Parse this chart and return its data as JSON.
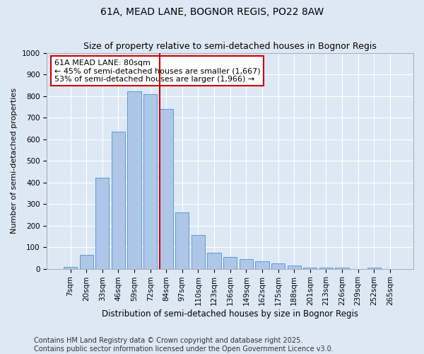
{
  "title": "61A, MEAD LANE, BOGNOR REGIS, PO22 8AW",
  "subtitle": "Size of property relative to semi-detached houses in Bognor Regis",
  "xlabel": "Distribution of semi-detached houses by size in Bognor Regis",
  "ylabel": "Number of semi-detached properties",
  "categories": [
    "7sqm",
    "20sqm",
    "33sqm",
    "46sqm",
    "59sqm",
    "72sqm",
    "84sqm",
    "97sqm",
    "110sqm",
    "123sqm",
    "136sqm",
    "149sqm",
    "162sqm",
    "175sqm",
    "188sqm",
    "201sqm",
    "213sqm",
    "226sqm",
    "239sqm",
    "252sqm",
    "265sqm"
  ],
  "values": [
    10,
    65,
    420,
    635,
    820,
    810,
    740,
    260,
    155,
    75,
    55,
    45,
    35,
    25,
    15,
    5,
    5,
    5,
    0,
    5,
    0
  ],
  "bar_color": "#aec6e8",
  "bar_edge_color": "#5b9bd5",
  "vline_index": 6,
  "annotation_text": "61A MEAD LANE: 80sqm\n← 45% of semi-detached houses are smaller (1,667)\n53% of semi-detached houses are larger (1,966) →",
  "annotation_box_color": "#ffffff",
  "annotation_box_edge": "#cc0000",
  "vline_color": "#cc0000",
  "ylim": [
    0,
    1000
  ],
  "yticks": [
    0,
    100,
    200,
    300,
    400,
    500,
    600,
    700,
    800,
    900,
    1000
  ],
  "footer_line1": "Contains HM Land Registry data © Crown copyright and database right 2025.",
  "footer_line2": "Contains public sector information licensed under the Open Government Licence v3.0.",
  "background_color": "#dde8f5",
  "plot_bg_color": "#dde8f5",
  "title_fontsize": 10,
  "tick_fontsize": 7.5,
  "footer_fontsize": 7,
  "bar_width": 0.85
}
